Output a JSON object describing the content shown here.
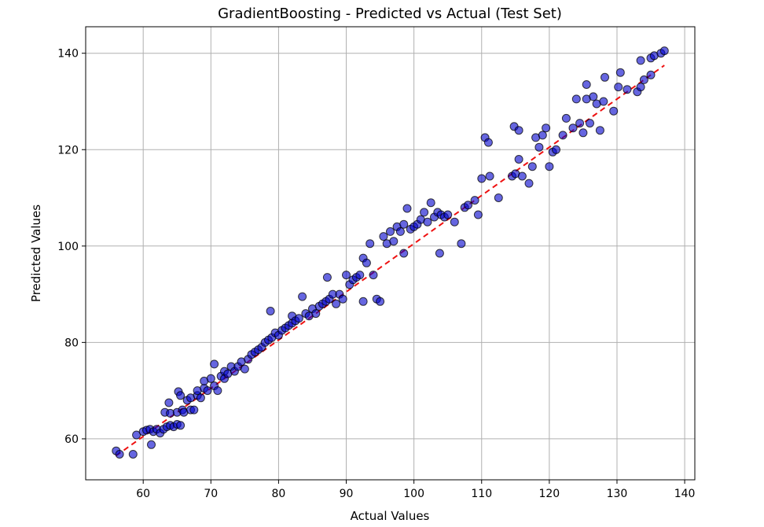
{
  "chart_data": {
    "type": "scatter",
    "title": "GradientBoosting - Predicted vs Actual (Test Set)",
    "xlabel": "Actual Values",
    "ylabel": "Predicted Values",
    "xlim": [
      51.5,
      141.5
    ],
    "ylim": [
      51.5,
      145.5
    ],
    "xticks": [
      60,
      70,
      80,
      90,
      100,
      110,
      120,
      130,
      140
    ],
    "yticks": [
      60,
      80,
      100,
      120,
      140
    ],
    "grid": true,
    "colors": {
      "points": "#0000cc",
      "point_edge": "#000000",
      "reference_line": "#ee1111",
      "grid": "#b0b0b0"
    },
    "reference_line": {
      "style": "dashed",
      "x": [
        56,
        137
      ],
      "y": [
        56.5,
        137.5
      ]
    },
    "series": [
      {
        "points": [
          [
            56,
            57.5
          ],
          [
            56.5,
            56.8
          ],
          [
            58.5,
            56.8
          ],
          [
            59,
            60.8
          ],
          [
            60,
            61.5
          ],
          [
            60.5,
            61.8
          ],
          [
            61,
            62
          ],
          [
            61.2,
            58.8
          ],
          [
            61.5,
            61.5
          ],
          [
            62,
            62
          ],
          [
            62.5,
            61.2
          ],
          [
            63,
            62
          ],
          [
            63.2,
            65.5
          ],
          [
            63.5,
            62.5
          ],
          [
            63.8,
            67.5
          ],
          [
            64,
            62.8
          ],
          [
            64,
            65.3
          ],
          [
            64.5,
            62.5
          ],
          [
            65,
            63
          ],
          [
            65,
            65.5
          ],
          [
            65.2,
            69.8
          ],
          [
            65.5,
            62.8
          ],
          [
            65.5,
            69
          ],
          [
            65.8,
            66
          ],
          [
            66,
            65.5
          ],
          [
            66.5,
            68
          ],
          [
            67,
            66
          ],
          [
            67,
            68.5
          ],
          [
            67.5,
            66
          ],
          [
            68,
            69
          ],
          [
            68,
            70
          ],
          [
            68.5,
            68.5
          ],
          [
            69,
            70.5
          ],
          [
            69,
            72
          ],
          [
            69.5,
            70
          ],
          [
            70,
            72.5
          ],
          [
            70.5,
            71
          ],
          [
            70.5,
            75.5
          ],
          [
            71,
            70
          ],
          [
            71.5,
            73
          ],
          [
            72,
            72.5
          ],
          [
            72,
            74
          ],
          [
            72.5,
            73.5
          ],
          [
            73,
            75
          ],
          [
            73.5,
            74
          ],
          [
            74,
            75
          ],
          [
            74.5,
            76
          ],
          [
            75,
            74.5
          ],
          [
            75.5,
            76.5
          ],
          [
            76,
            77.5
          ],
          [
            76.5,
            78
          ],
          [
            77,
            78.5
          ],
          [
            77.5,
            79
          ],
          [
            78,
            80
          ],
          [
            78.5,
            80.5
          ],
          [
            78.8,
            86.5
          ],
          [
            79,
            81
          ],
          [
            79.5,
            82
          ],
          [
            80,
            81.5
          ],
          [
            80.5,
            82.5
          ],
          [
            81,
            83
          ],
          [
            81.5,
            83.5
          ],
          [
            82,
            84
          ],
          [
            82,
            85.5
          ],
          [
            82.5,
            84.5
          ],
          [
            83,
            85
          ],
          [
            83.5,
            89.5
          ],
          [
            84,
            86
          ],
          [
            84.5,
            85.5
          ],
          [
            85,
            87
          ],
          [
            85.5,
            86
          ],
          [
            86,
            87.5
          ],
          [
            86.5,
            88
          ],
          [
            87,
            88.5
          ],
          [
            87.2,
            93.5
          ],
          [
            87.5,
            89
          ],
          [
            88,
            90
          ],
          [
            88.5,
            88
          ],
          [
            89,
            90
          ],
          [
            89.5,
            89
          ],
          [
            90,
            94
          ],
          [
            90.5,
            92
          ],
          [
            91,
            93
          ],
          [
            91.5,
            93.5
          ],
          [
            92,
            94
          ],
          [
            92.5,
            97.5
          ],
          [
            92.5,
            88.5
          ],
          [
            93,
            96.5
          ],
          [
            93.5,
            100.5
          ],
          [
            94,
            94
          ],
          [
            94.5,
            89
          ],
          [
            95,
            88.5
          ],
          [
            95.5,
            102
          ],
          [
            96,
            100.5
          ],
          [
            96.5,
            103
          ],
          [
            97,
            101
          ],
          [
            97.5,
            104
          ],
          [
            98,
            103
          ],
          [
            98.5,
            98.5
          ],
          [
            98.5,
            104.5
          ],
          [
            99,
            107.8
          ],
          [
            99.5,
            103.5
          ],
          [
            100,
            104
          ],
          [
            100.5,
            104.5
          ],
          [
            101,
            105.5
          ],
          [
            101.5,
            107
          ],
          [
            102,
            105
          ],
          [
            102.5,
            109
          ],
          [
            103,
            106
          ],
          [
            103.5,
            107
          ],
          [
            103.8,
            98.5
          ],
          [
            104,
            106.5
          ],
          [
            104.5,
            106
          ],
          [
            105,
            106.5
          ],
          [
            106,
            105
          ],
          [
            107,
            100.5
          ],
          [
            107.5,
            108
          ],
          [
            108,
            108.5
          ],
          [
            109,
            109.5
          ],
          [
            109.5,
            106.5
          ],
          [
            110,
            114
          ],
          [
            110.5,
            122.5
          ],
          [
            111,
            121.5
          ],
          [
            111.2,
            114.5
          ],
          [
            112.5,
            110
          ],
          [
            114.5,
            114.5
          ],
          [
            114.8,
            124.8
          ],
          [
            115,
            115
          ],
          [
            115.5,
            118
          ],
          [
            115.5,
            124
          ],
          [
            116,
            114.5
          ],
          [
            117,
            113
          ],
          [
            117.5,
            116.5
          ],
          [
            118,
            122.5
          ],
          [
            118.5,
            120.5
          ],
          [
            119,
            123
          ],
          [
            119.5,
            124.5
          ],
          [
            120,
            116.5
          ],
          [
            120.5,
            119.5
          ],
          [
            121,
            120
          ],
          [
            122,
            123
          ],
          [
            122.5,
            126.5
          ],
          [
            123.5,
            124.5
          ],
          [
            124,
            130.5
          ],
          [
            124.5,
            125.5
          ],
          [
            125,
            123.5
          ],
          [
            125.5,
            130.5
          ],
          [
            125.5,
            133.5
          ],
          [
            126,
            125.5
          ],
          [
            126.5,
            131
          ],
          [
            127,
            129.5
          ],
          [
            127.5,
            124
          ],
          [
            128,
            130
          ],
          [
            128.2,
            135
          ],
          [
            129.5,
            128
          ],
          [
            130.2,
            133
          ],
          [
            130.5,
            136
          ],
          [
            131.5,
            132.5
          ],
          [
            133,
            132
          ],
          [
            133.5,
            133
          ],
          [
            133.5,
            138.5
          ],
          [
            134,
            134.5
          ],
          [
            135,
            135.5
          ],
          [
            135,
            139
          ],
          [
            135.5,
            139.5
          ],
          [
            136.5,
            140
          ],
          [
            137,
            140.5
          ]
        ]
      }
    ]
  }
}
